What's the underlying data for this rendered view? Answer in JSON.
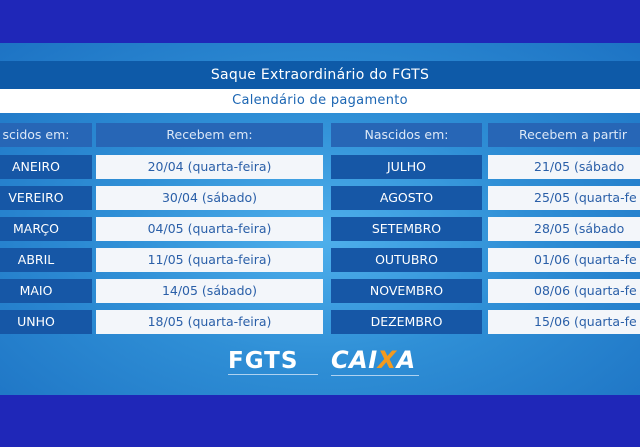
{
  "title": "Saque Extraordinário do FGTS",
  "subtitle": "Calendário de pagamento",
  "headers": {
    "left_born": "scidos em:",
    "left_receive": "Recebem em:",
    "right_born": "Nascidos em:",
    "right_receive": "Recebem a partir"
  },
  "left_rows": [
    {
      "month": "ANEIRO",
      "date": "20/04 (quarta-feira)"
    },
    {
      "month": "VEREIRO",
      "date": "30/04 (sábado)"
    },
    {
      "month": "MARÇO",
      "date": "04/05 (quarta-feira)"
    },
    {
      "month": "ABRIL",
      "date": "11/05 (quarta-feira)"
    },
    {
      "month": "MAIO",
      "date": "14/05 (sábado)"
    },
    {
      "month": "UNHO",
      "date": "18/05 (quarta-feira)"
    }
  ],
  "right_rows": [
    {
      "month": "JULHO",
      "date": "21/05 (sábado"
    },
    {
      "month": "AGOSTO",
      "date": "25/05 (quarta-fe"
    },
    {
      "month": "SETEMBRO",
      "date": "28/05 (sábado"
    },
    {
      "month": "OUTUBRO",
      "date": "01/06 (quarta-fe"
    },
    {
      "month": "NOVEMBRO",
      "date": "08/06 (quarta-fe"
    },
    {
      "month": "DEZEMBRO",
      "date": "15/06 (quarta-fe"
    }
  ],
  "logos": {
    "fgts": "FGTS",
    "caixa_prefix": "CAI",
    "caixa_x": "X",
    "caixa_suffix": "A"
  }
}
